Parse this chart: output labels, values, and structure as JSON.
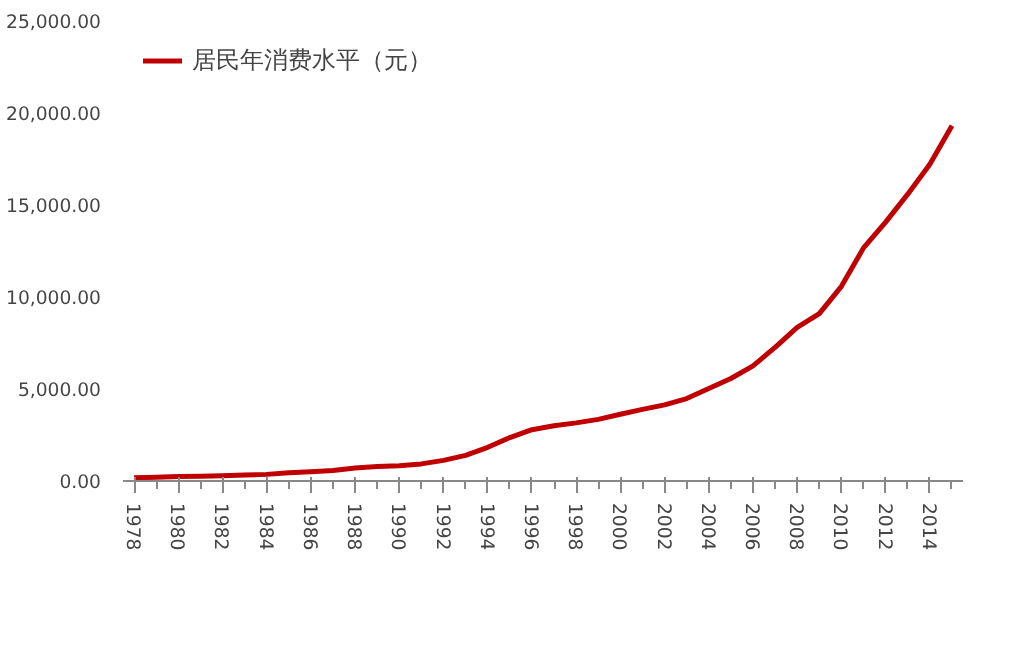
{
  "chart_data": {
    "type": "line",
    "categories": [
      "1978",
      null,
      "1980",
      null,
      "1982",
      null,
      "1984",
      null,
      "1986",
      null,
      "1988",
      null,
      "1990",
      null,
      "1992",
      null,
      "1994",
      null,
      "1996",
      null,
      "1998",
      null,
      "2000",
      null,
      "2002",
      null,
      "2004",
      null,
      "2006",
      null,
      "2008",
      null,
      "2010",
      null,
      "2012",
      null,
      "2014",
      null
    ],
    "series": [
      {
        "name": "居民年消费水平（元）",
        "color": "#c00000",
        "values": [
          180,
          210,
          240,
          260,
          290,
          320,
          360,
          450,
          500,
          570,
          710,
          790,
          830,
          930,
          1120,
          1390,
          1830,
          2360,
          2790,
          3000,
          3160,
          3350,
          3630,
          3890,
          4140,
          4480,
          5030,
          5570,
          6260,
          7260,
          8350,
          9100,
          10580,
          12670,
          14070,
          15590,
          17220,
          19310
        ]
      }
    ],
    "ylim": [
      0,
      25000
    ],
    "yticks": [
      {
        "value": 0,
        "label": "0.00"
      },
      {
        "value": 5000,
        "label": "5,000.00"
      },
      {
        "value": 10000,
        "label": "10,000.00"
      },
      {
        "value": 15000,
        "label": "15,000.00"
      },
      {
        "value": 20000,
        "label": "20,000.00"
      },
      {
        "value": 25000,
        "label": "25,000.00"
      }
    ],
    "grid": false,
    "legend": "top left",
    "marker": "none",
    "line_style": "solid"
  }
}
